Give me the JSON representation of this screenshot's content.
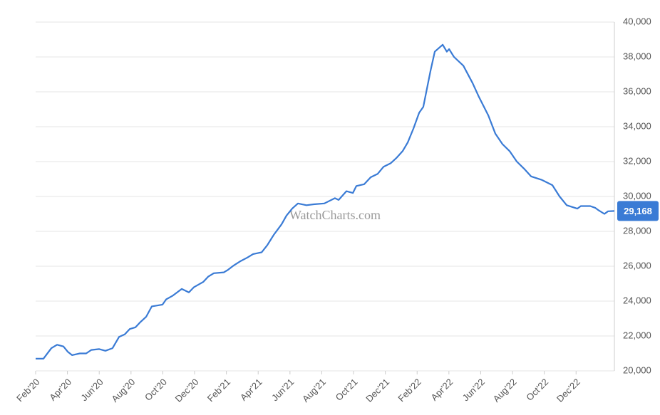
{
  "chart_data": {
    "type": "line",
    "watermark": "WatchCharts.com",
    "x": [
      0,
      0.49,
      0.99,
      1.35,
      1.75,
      2.02,
      2.29,
      2.78,
      3.18,
      3.5,
      4.0,
      4.39,
      4.84,
      5.25,
      5.61,
      5.92,
      6.28,
      6.59,
      6.95,
      7.31,
      7.98,
      8.21,
      8.61,
      9.19,
      9.64,
      9.96,
      10.54,
      10.85,
      11.21,
      11.84,
      12.11,
      12.47,
      12.91,
      13.32,
      13.68,
      14.22,
      14.57,
      14.98,
      15.47,
      15.78,
      16.14,
      16.5,
      17.04,
      17.49,
      18.16,
      18.83,
      19.06,
      19.55,
      19.96,
      20.18,
      20.67,
      21.08,
      21.52,
      21.88,
      22.33,
      22.69,
      23.09,
      23.41,
      23.77,
      24.13,
      24.39,
      24.84,
      25.11,
      25.61,
      25.87,
      26.01,
      26.32,
      26.91,
      27.49,
      27.89,
      28.48,
      28.92,
      29.37,
      29.82,
      30.27,
      30.72,
      31.17,
      31.84,
      32.51,
      32.96,
      33.41,
      34.08,
      34.3,
      34.89,
      35.2,
      35.43,
      35.78,
      36.01,
      36.41
    ],
    "values": [
      20700,
      20700,
      21300,
      21500,
      21400,
      21100,
      20900,
      21000,
      21000,
      21200,
      21250,
      21150,
      21300,
      21950,
      22100,
      22400,
      22500,
      22800,
      23100,
      23700,
      23800,
      24100,
      24300,
      24700,
      24500,
      24800,
      25100,
      25400,
      25600,
      25650,
      25800,
      26050,
      26300,
      26500,
      26700,
      26800,
      27200,
      27800,
      28400,
      28900,
      29300,
      29600,
      29500,
      29550,
      29600,
      29900,
      29800,
      30300,
      30200,
      30600,
      30700,
      31100,
      31300,
      31700,
      31900,
      32200,
      32600,
      33100,
      33900,
      34800,
      35140,
      37200,
      38300,
      38700,
      38300,
      38450,
      38000,
      37500,
      36500,
      35700,
      34650,
      33600,
      33000,
      32600,
      32000,
      31600,
      31150,
      30950,
      30650,
      30000,
      29500,
      29300,
      29450,
      29450,
      29350,
      29200,
      29000,
      29150,
      29168
    ],
    "value_labels": [
      null,
      null,
      null,
      null,
      null,
      null,
      null,
      null,
      null,
      null,
      null,
      null,
      null,
      null,
      null,
      null,
      null,
      null,
      null,
      null,
      null,
      null,
      null,
      null,
      null,
      null,
      null,
      null,
      null,
      null,
      null,
      null,
      null,
      null,
      null,
      null,
      null,
      null,
      null,
      null,
      null,
      null,
      null,
      null,
      null,
      null,
      null,
      null,
      null,
      null,
      null,
      null,
      null,
      null,
      null,
      null,
      null,
      null,
      null,
      null,
      null,
      null,
      null,
      null,
      null,
      null,
      null,
      null,
      null,
      null,
      null,
      null,
      null,
      null,
      null,
      null,
      null,
      null,
      null,
      null,
      null,
      null,
      null,
      null,
      null,
      null,
      null,
      null,
      "29,168"
    ],
    "color": "#3a7bd5",
    "xlim": [
      0,
      36.41
    ],
    "xticks": [
      {
        "value": 0,
        "label": "Feb'20"
      },
      {
        "value": 2,
        "label": "Apr'20"
      },
      {
        "value": 4,
        "label": "Jun'20"
      },
      {
        "value": 6,
        "label": "Aug'20"
      },
      {
        "value": 8,
        "label": "Oct'20"
      },
      {
        "value": 10,
        "label": "Dec'20"
      },
      {
        "value": 12,
        "label": "Feb'21"
      },
      {
        "value": 14,
        "label": "Apr'21"
      },
      {
        "value": 16,
        "label": "Jun'21"
      },
      {
        "value": 18,
        "label": "Aug'21"
      },
      {
        "value": 20,
        "label": "Oct'21"
      },
      {
        "value": 22,
        "label": "Dec'21"
      },
      {
        "value": 24,
        "label": "Feb'22"
      },
      {
        "value": 26,
        "label": "Apr'22"
      },
      {
        "value": 28,
        "label": "Jun'22"
      },
      {
        "value": 30,
        "label": "Aug'22"
      },
      {
        "value": 32,
        "label": "Oct'22"
      },
      {
        "value": 34,
        "label": "Dec'22"
      }
    ],
    "ylim": [
      20000,
      40000
    ],
    "yticks": [
      {
        "value": 20000,
        "label": "20,000"
      },
      {
        "value": 22000,
        "label": "22,000"
      },
      {
        "value": 24000,
        "label": "24,000"
      },
      {
        "value": 26000,
        "label": "26,000"
      },
      {
        "value": 28000,
        "label": "28,000"
      },
      {
        "value": 30000,
        "label": "30,000"
      },
      {
        "value": 32000,
        "label": "32,000"
      },
      {
        "value": 34000,
        "label": "34,000"
      },
      {
        "value": 36000,
        "label": "36,000"
      },
      {
        "value": 38000,
        "label": "38,000"
      },
      {
        "value": 40000,
        "label": "40,000"
      }
    ],
    "grid": true
  }
}
